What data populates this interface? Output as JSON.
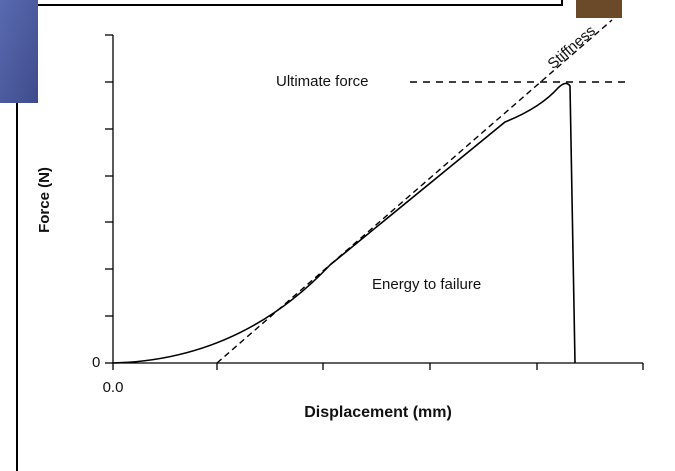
{
  "axes": {
    "y_label": "Force (N)",
    "x_label": "Displacement (mm)",
    "y_tick_label": "0",
    "x_tick_label": "0.0"
  },
  "annotations": {
    "ultimate_force": "Ultimate force",
    "stiffness": "Stiffness",
    "energy": "Energy to failure"
  }
}
